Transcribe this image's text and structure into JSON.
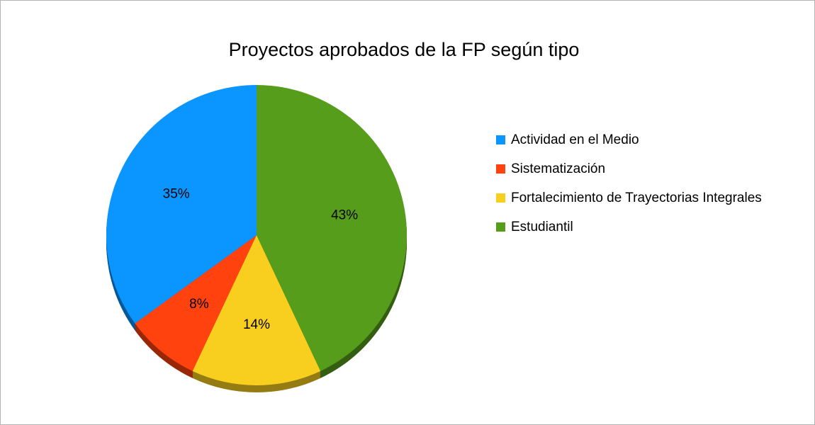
{
  "chart_data": {
    "type": "pie",
    "title": "Proyectos aprobados de la FP según tipo",
    "categories": [
      "Actividad en el Medio",
      "Sistematización",
      "Fortalecimiento de Trayectorias Integrales",
      "Estudiantil"
    ],
    "values": [
      35,
      8,
      14,
      43
    ],
    "value_labels": [
      "35%",
      "8%",
      "14%",
      "43%"
    ],
    "colors": [
      "#0a95ff",
      "#ff420e",
      "#f9cf1f",
      "#579d1c"
    ],
    "legend": "right"
  }
}
